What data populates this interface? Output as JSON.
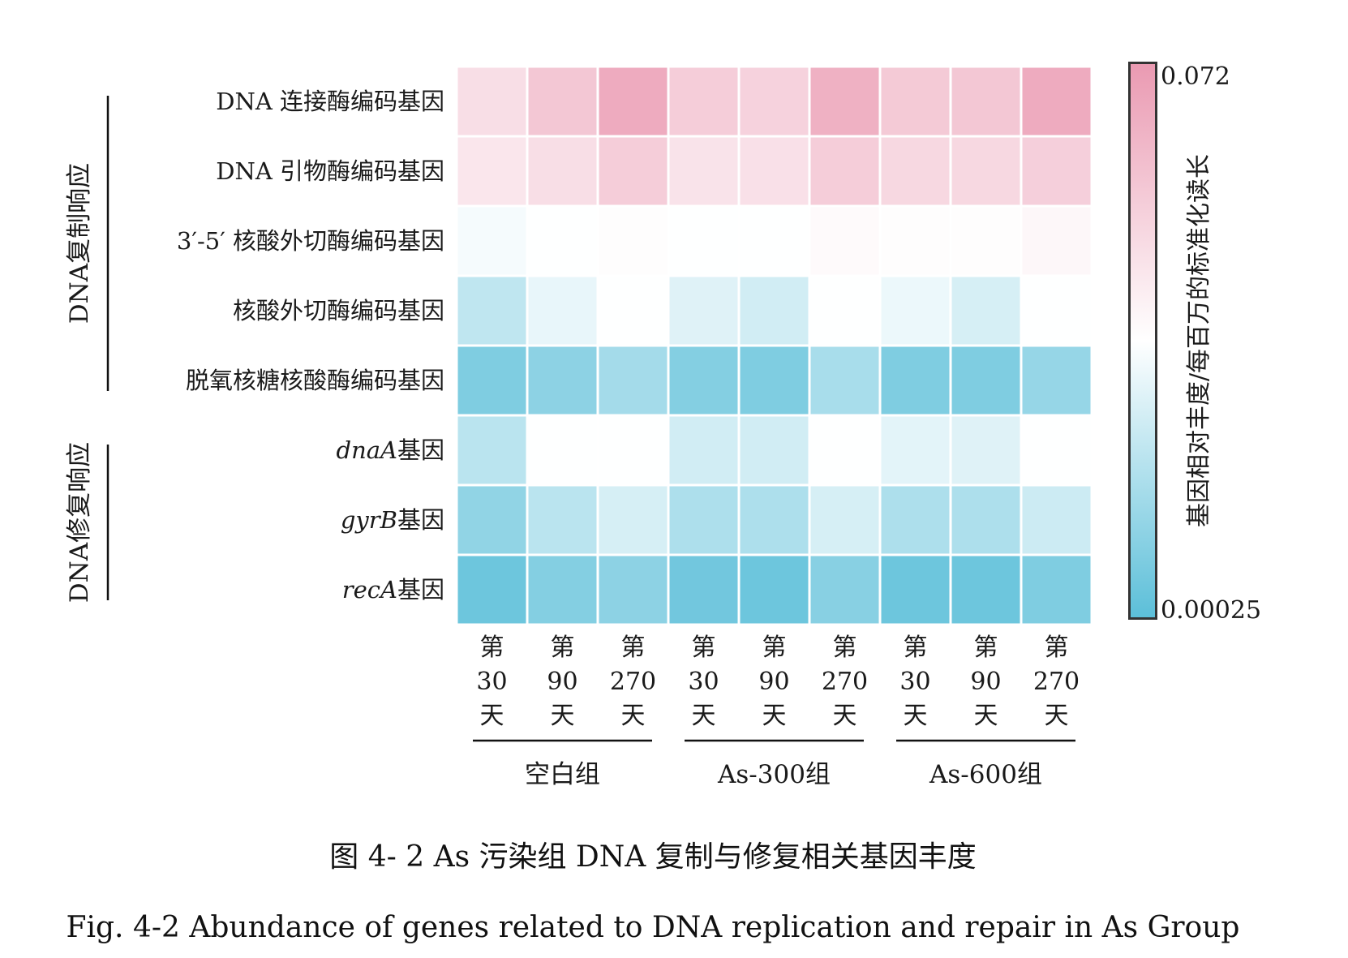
{
  "chart_data": {
    "type": "heatmap",
    "rows": [
      {
        "label": "DNA 连接酶编码基因",
        "italic": ""
      },
      {
        "label": "DNA 引物酶编码基因",
        "italic": ""
      },
      {
        "label": "3′-5′ 核酸外切酶编码基因",
        "italic": ""
      },
      {
        "label": "核酸外切酶编码基因",
        "italic": ""
      },
      {
        "label": "脱氧核糖核酸酶编码基因",
        "italic": ""
      },
      {
        "label": "基因",
        "italic": "dnaA"
      },
      {
        "label": "基因",
        "italic": "gyrB"
      },
      {
        "label": "基因",
        "italic": "recA"
      }
    ],
    "row_groups": [
      {
        "label": "DNA复制响应",
        "rows": [
          0,
          4
        ]
      },
      {
        "label": "DNA修复响应",
        "rows": [
          5,
          7
        ]
      }
    ],
    "columns": [
      {
        "top": "第",
        "mid": "30",
        "bottom": "天"
      },
      {
        "top": "第",
        "mid": "90",
        "bottom": "天"
      },
      {
        "top": "第",
        "mid": "270",
        "bottom": "天"
      },
      {
        "top": "第",
        "mid": "30",
        "bottom": "天"
      },
      {
        "top": "第",
        "mid": "90",
        "bottom": "天"
      },
      {
        "top": "第",
        "mid": "270",
        "bottom": "天"
      },
      {
        "top": "第",
        "mid": "30",
        "bottom": "天"
      },
      {
        "top": "第",
        "mid": "90",
        "bottom": "天"
      },
      {
        "top": "第",
        "mid": "270",
        "bottom": "天"
      }
    ],
    "column_groups": [
      {
        "label": "空白组",
        "cols": [
          0,
          2
        ]
      },
      {
        "label": "As-300组",
        "cols": [
          3,
          5
        ]
      },
      {
        "label": "As-600组",
        "cols": [
          6,
          8
        ]
      }
    ],
    "values": [
      [
        0.048,
        0.056,
        0.066,
        0.054,
        0.052,
        0.064,
        0.055,
        0.056,
        0.066
      ],
      [
        0.045,
        0.048,
        0.054,
        0.046,
        0.047,
        0.054,
        0.05,
        0.05,
        0.053
      ],
      [
        0.034,
        0.036,
        0.037,
        0.036,
        0.036,
        0.038,
        0.037,
        0.037,
        0.039
      ],
      [
        0.022,
        0.031,
        0.036,
        0.029,
        0.026,
        0.036,
        0.032,
        0.027,
        0.036
      ],
      [
        0.008,
        0.011,
        0.016,
        0.009,
        0.008,
        0.017,
        0.008,
        0.008,
        0.013
      ],
      [
        0.021,
        0.036,
        0.036,
        0.026,
        0.026,
        0.036,
        0.03,
        0.029,
        0.036
      ],
      [
        0.012,
        0.021,
        0.027,
        0.018,
        0.018,
        0.027,
        0.018,
        0.018,
        0.025
      ],
      [
        0.004,
        0.009,
        0.011,
        0.005,
        0.004,
        0.01,
        0.004,
        0.004,
        0.008
      ]
    ],
    "colorbar": {
      "min": 0.00025,
      "max": 0.072,
      "min_label": "0.00025",
      "max_label": "0.072",
      "title": "基因相对丰度/每百万的标准化读长",
      "low_color": "#5cbfd9",
      "mid_color": "#ffffff",
      "high_color": "#ea9ab2"
    }
  },
  "caption": {
    "cn": "图 4- 2 As 污染组 DNA 复制与修复相关基因丰度",
    "en": "Fig. 4-2 Abundance of genes related to DNA replication and repair in As Group"
  }
}
